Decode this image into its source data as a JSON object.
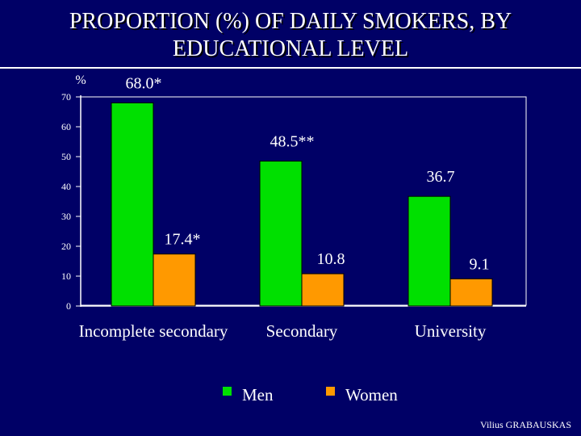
{
  "title_line1": "PROPORTION (%) OF DAILY SMOKERS,  BY",
  "title_line2": "EDUCATIONAL LEVEL",
  "credit": "Vilius GRABAUSKAS",
  "colors": {
    "background": "#000066",
    "men": "#00e000",
    "women": "#ff9900",
    "text": "#ffffff"
  },
  "chart_data": {
    "type": "bar",
    "ylabel": "%",
    "ylim": [
      0,
      70
    ],
    "yticks": [
      0,
      10,
      20,
      30,
      40,
      50,
      60,
      70
    ],
    "grid": false,
    "legend_position": "bottom",
    "categories": [
      "Incomplete secondary",
      "Secondary",
      "University"
    ],
    "series": [
      {
        "name": "Men",
        "values": [
          68.0,
          48.5,
          36.7
        ],
        "labels": [
          "68.0*",
          "48.5**",
          "36.7"
        ]
      },
      {
        "name": "Women",
        "values": [
          17.4,
          10.8,
          9.1
        ],
        "labels": [
          "17.4*",
          "10.8",
          "9.1"
        ]
      }
    ]
  }
}
